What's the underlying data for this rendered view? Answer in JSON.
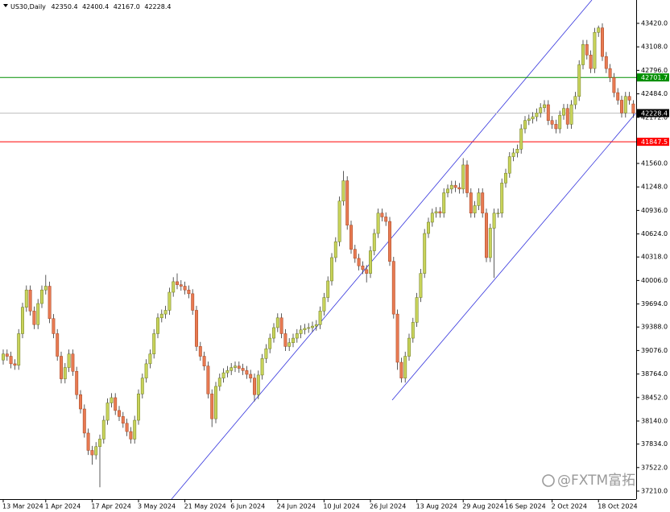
{
  "chart_data": {
    "type": "candlestick",
    "title": "US30,Daily",
    "header_values": [
      "42350.4",
      "42400.4",
      "42167.0",
      "42228.4"
    ],
    "watermark": "@FXTM富拓",
    "bull_color": "#c8d35a",
    "bear_color": "#e87a52",
    "categories": [
      "13 Mar 2024",
      null,
      null,
      null,
      null,
      null,
      null,
      null,
      null,
      null,
      null,
      "1 Apr 2024",
      null,
      null,
      null,
      null,
      null,
      null,
      null,
      null,
      null,
      null,
      null,
      "17 Apr 2024",
      null,
      null,
      null,
      null,
      null,
      null,
      null,
      null,
      null,
      null,
      null,
      "3 May 2024",
      null,
      null,
      null,
      null,
      null,
      null,
      null,
      null,
      null,
      null,
      null,
      "21 May 2024",
      null,
      null,
      null,
      null,
      null,
      null,
      null,
      null,
      null,
      null,
      null,
      "6 Jun 2024",
      null,
      null,
      null,
      null,
      null,
      null,
      null,
      null,
      null,
      null,
      null,
      "24 Jun 2024",
      null,
      null,
      null,
      null,
      null,
      null,
      null,
      null,
      null,
      null,
      null,
      "10 Jul 2024",
      null,
      null,
      null,
      null,
      null,
      null,
      null,
      null,
      null,
      null,
      null,
      "26 Jul 2024",
      null,
      null,
      null,
      null,
      null,
      null,
      null,
      null,
      null,
      null,
      null,
      "13 Aug 2024",
      null,
      null,
      null,
      null,
      null,
      null,
      null,
      null,
      null,
      null,
      null,
      "29 Aug 2024",
      null,
      null,
      null,
      null,
      null,
      null,
      null,
      null,
      null,
      null,
      "16 Sep 2024",
      null,
      null,
      null,
      null,
      null,
      null,
      null,
      null,
      null,
      null,
      null,
      "2 Oct 2024",
      null,
      null,
      null,
      null,
      null,
      null,
      null,
      null,
      null,
      null,
      null,
      "18 Oct 2024",
      null,
      null,
      null,
      null,
      null,
      null,
      null,
      null,
      null
    ],
    "ohlc": [
      [
        38950,
        39090,
        38890,
        39030
      ],
      [
        39030,
        39090,
        38940,
        39000
      ],
      [
        39000,
        39060,
        38840,
        38900
      ],
      [
        38900,
        38960,
        38820,
        38880
      ],
      [
        38880,
        39360,
        38820,
        39300
      ],
      [
        39300,
        39710,
        39240,
        39650
      ],
      [
        39650,
        39940,
        39590,
        39880
      ],
      [
        39880,
        39940,
        39540,
        39600
      ],
      [
        39600,
        39660,
        39360,
        39420
      ],
      [
        39420,
        39760,
        39360,
        39700
      ],
      [
        39700,
        39940,
        39640,
        39880
      ],
      [
        39880,
        40080,
        39820,
        39930
      ],
      [
        39930,
        39990,
        39440,
        39500
      ],
      [
        39500,
        39560,
        39240,
        39300
      ],
      [
        39300,
        39360,
        38940,
        39000
      ],
      [
        39000,
        39060,
        38640,
        38700
      ],
      [
        38700,
        38910,
        38640,
        38850
      ],
      [
        38850,
        39090,
        38790,
        39030
      ],
      [
        39030,
        39090,
        38740,
        38800
      ],
      [
        38800,
        38860,
        38430,
        38490
      ],
      [
        38490,
        38550,
        38240,
        38300
      ],
      [
        38300,
        38360,
        37920,
        37980
      ],
      [
        37980,
        38040,
        37690,
        37750
      ],
      [
        37750,
        37810,
        37560,
        37690
      ],
      [
        37690,
        37860,
        37630,
        37800
      ],
      [
        37800,
        37960,
        37260,
        37900
      ],
      [
        37900,
        38210,
        37840,
        38150
      ],
      [
        38150,
        38440,
        38090,
        38380
      ],
      [
        38380,
        38510,
        38320,
        38450
      ],
      [
        38450,
        38510,
        38220,
        38280
      ],
      [
        38280,
        38340,
        38140,
        38200
      ],
      [
        38200,
        38260,
        38050,
        38110
      ],
      [
        38110,
        38170,
        37940,
        38000
      ],
      [
        38000,
        38060,
        37840,
        37900
      ],
      [
        37900,
        38210,
        37840,
        38150
      ],
      [
        38150,
        38560,
        38090,
        38500
      ],
      [
        38500,
        38770,
        38440,
        38710
      ],
      [
        38710,
        38960,
        38650,
        38900
      ],
      [
        38900,
        39090,
        38840,
        39030
      ],
      [
        39030,
        39360,
        38970,
        39300
      ],
      [
        39300,
        39570,
        39240,
        39510
      ],
      [
        39510,
        39620,
        39450,
        39560
      ],
      [
        39560,
        39670,
        39500,
        39610
      ],
      [
        39610,
        39910,
        39550,
        39850
      ],
      [
        39850,
        40050,
        39790,
        39990
      ],
      [
        39990,
        40100,
        39890,
        39950
      ],
      [
        39950,
        40010,
        39870,
        39930
      ],
      [
        39930,
        39990,
        39820,
        39880
      ],
      [
        39880,
        39940,
        39770,
        39830
      ],
      [
        39830,
        39890,
        39550,
        39610
      ],
      [
        39610,
        39670,
        39070,
        39130
      ],
      [
        39130,
        39190,
        38940,
        39000
      ],
      [
        39000,
        39060,
        38810,
        38870
      ],
      [
        38870,
        38930,
        38440,
        38500
      ],
      [
        38500,
        38560,
        38060,
        38170
      ],
      [
        38170,
        38660,
        38110,
        38600
      ],
      [
        38600,
        38770,
        38540,
        38710
      ],
      [
        38710,
        38840,
        38650,
        38780
      ],
      [
        38780,
        38870,
        38720,
        38810
      ],
      [
        38810,
        38910,
        38750,
        38850
      ],
      [
        38850,
        38930,
        38790,
        38870
      ],
      [
        38870,
        38930,
        38780,
        38840
      ],
      [
        38840,
        38900,
        38750,
        38810
      ],
      [
        38810,
        38870,
        38700,
        38760
      ],
      [
        38760,
        38820,
        38650,
        38710
      ],
      [
        38710,
        38770,
        38400,
        38490
      ],
      [
        38490,
        38810,
        38430,
        38750
      ],
      [
        38750,
        39030,
        38690,
        38970
      ],
      [
        38970,
        39160,
        38910,
        39100
      ],
      [
        39100,
        39300,
        39040,
        39240
      ],
      [
        39240,
        39440,
        39180,
        39380
      ],
      [
        39380,
        39570,
        39320,
        39510
      ],
      [
        39510,
        39570,
        39240,
        39300
      ],
      [
        39300,
        39360,
        39070,
        39130
      ],
      [
        39130,
        39240,
        39070,
        39180
      ],
      [
        39180,
        39300,
        39120,
        39240
      ],
      [
        39240,
        39360,
        39180,
        39300
      ],
      [
        39300,
        39410,
        39240,
        39350
      ],
      [
        39350,
        39430,
        39290,
        39370
      ],
      [
        39370,
        39440,
        39310,
        39380
      ],
      [
        39380,
        39460,
        39320,
        39400
      ],
      [
        39400,
        39480,
        39340,
        39420
      ],
      [
        39420,
        39660,
        39360,
        39600
      ],
      [
        39600,
        39840,
        39540,
        39780
      ],
      [
        39780,
        40060,
        39720,
        40000
      ],
      [
        40000,
        40370,
        39940,
        40310
      ],
      [
        40310,
        40580,
        40250,
        40520
      ],
      [
        40520,
        41120,
        40460,
        41060
      ],
      [
        41060,
        41460,
        41000,
        41330
      ],
      [
        41330,
        41390,
        40680,
        40740
      ],
      [
        40740,
        40800,
        40360,
        40420
      ],
      [
        40420,
        40480,
        40240,
        40300
      ],
      [
        40300,
        40360,
        40140,
        40200
      ],
      [
        40200,
        40260,
        40090,
        40150
      ],
      [
        40150,
        40210,
        39980,
        40100
      ],
      [
        40100,
        40460,
        40040,
        40400
      ],
      [
        40400,
        40690,
        40340,
        40630
      ],
      [
        40630,
        40960,
        40570,
        40900
      ],
      [
        40900,
        40960,
        40790,
        40850
      ],
      [
        40850,
        40910,
        40730,
        40790
      ],
      [
        40790,
        40850,
        40200,
        40260
      ],
      [
        40260,
        40320,
        39500,
        39560
      ],
      [
        39560,
        39620,
        38820,
        38920
      ],
      [
        38920,
        38980,
        38650,
        38710
      ],
      [
        38710,
        39060,
        38650,
        39000
      ],
      [
        39000,
        39300,
        38940,
        39240
      ],
      [
        39240,
        39510,
        39180,
        39450
      ],
      [
        39450,
        39840,
        39390,
        39780
      ],
      [
        39780,
        40160,
        39720,
        40100
      ],
      [
        40100,
        40690,
        40040,
        40630
      ],
      [
        40630,
        40840,
        40570,
        40780
      ],
      [
        40780,
        40960,
        40720,
        40900
      ],
      [
        40900,
        40980,
        40840,
        40920
      ],
      [
        40920,
        40980,
        40840,
        40900
      ],
      [
        40900,
        41230,
        40840,
        41170
      ],
      [
        41170,
        41280,
        41110,
        41220
      ],
      [
        41220,
        41330,
        41160,
        41270
      ],
      [
        41270,
        41330,
        41180,
        41240
      ],
      [
        41240,
        41300,
        41160,
        41220
      ],
      [
        41220,
        41630,
        41160,
        41540
      ],
      [
        41540,
        41600,
        41110,
        41170
      ],
      [
        41170,
        41230,
        40840,
        40900
      ],
      [
        40900,
        41060,
        40840,
        41000
      ],
      [
        41000,
        41230,
        40940,
        41170
      ],
      [
        41170,
        41230,
        40840,
        40900
      ],
      [
        40900,
        40960,
        40250,
        40310
      ],
      [
        40310,
        40760,
        40250,
        40700
      ],
      [
        40700,
        40960,
        40040,
        40900
      ],
      [
        40900,
        40960,
        40840,
        40900
      ],
      [
        40900,
        41360,
        40840,
        41300
      ],
      [
        41300,
        41490,
        41240,
        41430
      ],
      [
        41430,
        41710,
        41370,
        41650
      ],
      [
        41650,
        41760,
        41590,
        41700
      ],
      [
        41700,
        41810,
        41640,
        41750
      ],
      [
        41750,
        42080,
        41690,
        42020
      ],
      [
        42020,
        42190,
        41960,
        42130
      ],
      [
        42130,
        42210,
        42070,
        42150
      ],
      [
        42150,
        42240,
        42090,
        42180
      ],
      [
        42180,
        42290,
        42120,
        42230
      ],
      [
        42230,
        42360,
        42170,
        42300
      ],
      [
        42300,
        42400,
        42240,
        42340
      ],
      [
        42340,
        42400,
        42070,
        42130
      ],
      [
        42130,
        42190,
        42020,
        42080
      ],
      [
        42080,
        42140,
        41960,
        42020
      ],
      [
        42020,
        42260,
        41960,
        42200
      ],
      [
        42200,
        42350,
        42140,
        42290
      ],
      [
        42290,
        42350,
        42020,
        42080
      ],
      [
        42080,
        42400,
        42020,
        42340
      ],
      [
        42340,
        42510,
        42280,
        42450
      ],
      [
        42450,
        42930,
        42390,
        42870
      ],
      [
        42870,
        43200,
        42810,
        43140
      ],
      [
        43140,
        43200,
        42940,
        43000
      ],
      [
        43000,
        43060,
        42760,
        42820
      ],
      [
        42820,
        43360,
        42760,
        43300
      ],
      [
        43300,
        43390,
        43240,
        43360
      ],
      [
        43360,
        43420,
        42920,
        42980
      ],
      [
        42980,
        43040,
        42760,
        42820
      ],
      [
        42820,
        42880,
        42640,
        42700
      ],
      [
        42700,
        42760,
        42440,
        42500
      ],
      [
        42500,
        42560,
        42340,
        42400
      ],
      [
        42400,
        42460,
        42170,
        42230
      ],
      [
        42230,
        42510,
        42170,
        42450
      ],
      [
        42450,
        42510,
        42340,
        42400
      ],
      [
        42350.4,
        42400.4,
        42167.0,
        42228.4
      ]
    ],
    "hlines": [
      {
        "value": 42701.7,
        "color": "#008f00"
      },
      {
        "value": 41847.5,
        "color": "#ff0000"
      }
    ],
    "last_price_color": "#000000",
    "ylim": [
      37103,
      43730
    ],
    "yticks": [
      {
        "value": 43420,
        "label": "43420.0"
      },
      {
        "value": 43108,
        "label": "43108.0"
      },
      {
        "value": 42796,
        "label": "42796.0"
      },
      {
        "value": 42484,
        "label": "42484.0"
      },
      {
        "value": 42172,
        "label": "42172.0"
      },
      {
        "value": 41560,
        "label": "41560.0"
      },
      {
        "value": 41248,
        "label": "41248.0"
      },
      {
        "value": 40936,
        "label": "40936.0"
      },
      {
        "value": 40624,
        "label": "40624.0"
      },
      {
        "value": 40318,
        "label": "40318.0"
      },
      {
        "value": 40006,
        "label": "40006.0"
      },
      {
        "value": 39694,
        "label": "39694.0"
      },
      {
        "value": 39388,
        "label": "39388.0"
      },
      {
        "value": 39076,
        "label": "39076.0"
      },
      {
        "value": 38764,
        "label": "38764.0"
      },
      {
        "value": 38452,
        "label": "38452.0"
      },
      {
        "value": 38140,
        "label": "38140.0"
      },
      {
        "value": 37834,
        "label": "37834.0"
      },
      {
        "value": 37522,
        "label": "37522.0"
      },
      {
        "value": 37210,
        "label": "37210.0"
      }
    ],
    "grid": false
  }
}
